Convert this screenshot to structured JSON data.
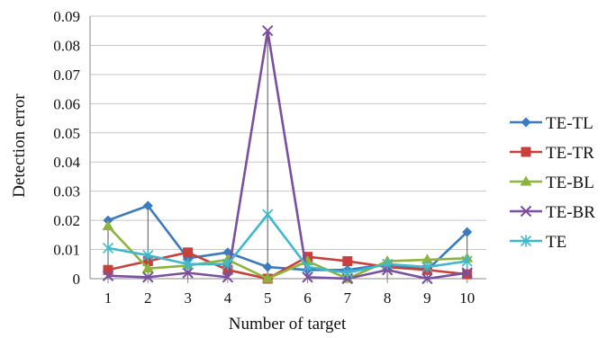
{
  "chart_data": {
    "type": "line",
    "x": [
      1,
      2,
      3,
      4,
      5,
      6,
      7,
      8,
      9,
      10
    ],
    "xlabel": "Number of target",
    "ylabel": "Detection error",
    "ylim": [
      0,
      0.09
    ],
    "yticks": [
      "0",
      "0.01",
      "0.02",
      "0.03",
      "0.04",
      "0.05",
      "0.06",
      "0.07",
      "0.08",
      "0.09"
    ],
    "xticks": [
      "1",
      "2",
      "3",
      "4",
      "5",
      "6",
      "7",
      "8",
      "9",
      "10"
    ],
    "grid": "horizontal",
    "drop_lines": true,
    "legend_position": "right",
    "series": [
      {
        "name": "TE-TL",
        "color": "#3a7abf",
        "marker": "diamond",
        "values": [
          0.02,
          0.025,
          0.007,
          0.009,
          0.004,
          0.003,
          0.003,
          0.005,
          0.003,
          0.016
        ]
      },
      {
        "name": "TE-TR",
        "color": "#c9403a",
        "marker": "square",
        "values": [
          0.003,
          0.006,
          0.009,
          0.003,
          0.0,
          0.0075,
          0.006,
          0.004,
          0.003,
          0.0015
        ]
      },
      {
        "name": "TE-BL",
        "color": "#8db33c",
        "marker": "triangle",
        "values": [
          0.018,
          0.0035,
          0.0045,
          0.0065,
          0.0,
          0.006,
          0.0,
          0.006,
          0.0065,
          0.007
        ]
      },
      {
        "name": "TE-BR",
        "color": "#7b4fa0",
        "marker": "x",
        "values": [
          0.001,
          0.0005,
          0.002,
          0.0005,
          0.085,
          0.0005,
          0.0,
          0.003,
          0.0,
          0.002
        ]
      },
      {
        "name": "TE",
        "color": "#3fb8cc",
        "marker": "star",
        "values": [
          0.0105,
          0.008,
          0.005,
          0.005,
          0.022,
          0.004,
          0.002,
          0.005,
          0.004,
          0.006
        ]
      }
    ]
  }
}
